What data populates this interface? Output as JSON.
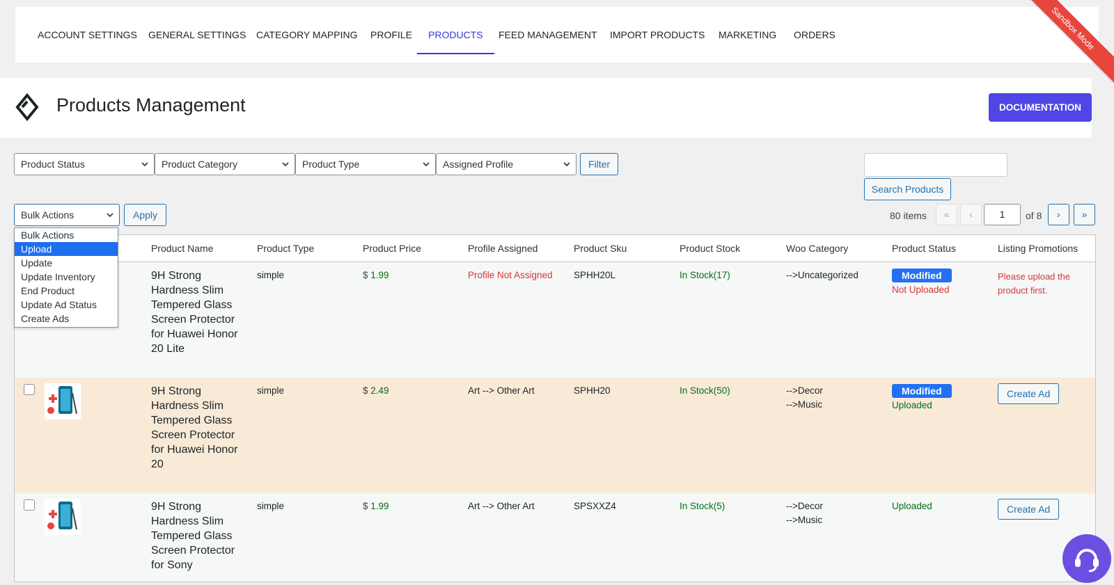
{
  "nav": {
    "tabs": [
      {
        "label": "ACCOUNT SETTINGS"
      },
      {
        "label": "GENERAL SETTINGS"
      },
      {
        "label": "CATEGORY MAPPING"
      },
      {
        "label": "PROFILE"
      },
      {
        "label": "PRODUCTS",
        "active": true
      },
      {
        "label": "FEED MANAGEMENT"
      },
      {
        "label": "IMPORT PRODUCTS"
      },
      {
        "label": "MARKETING"
      },
      {
        "label": "ORDERS"
      }
    ],
    "ribbon": "Sandbox Mode"
  },
  "header": {
    "title": "Products Management",
    "doc_button": "DOCUMENTATION",
    "accent": "#4f46e5"
  },
  "filters": {
    "status": "Product Status",
    "category": "Product Category",
    "type": "Product Type",
    "profile": "Assigned Profile",
    "filter_button": "Filter"
  },
  "search": {
    "value": "",
    "button": "Search Products"
  },
  "bulk": {
    "selected": "Bulk Actions",
    "apply": "Apply",
    "options": [
      "Bulk Actions",
      "Upload",
      "Update",
      "Update Inventory",
      "End Product",
      "Update Ad Status",
      "Create Ads"
    ],
    "highlighted": "Upload"
  },
  "pagination": {
    "items": "80 items",
    "first": "«",
    "prev": "‹",
    "current": "1",
    "of": "of 8",
    "next": "›",
    "last": "»"
  },
  "table": {
    "columns": [
      "Product Name",
      "Product Type",
      "Product Price",
      "Profile Assigned",
      "Product Sku",
      "Product Stock",
      "Woo Category",
      "Product Status",
      "Listing Promotions"
    ],
    "rows": [
      {
        "name": "9H Strong Hardness Slim Tempered Glass Screen Protector for Huawei Honor 20 Lite",
        "type": "simple",
        "currency": "$",
        "price": "1.99",
        "profile": "Profile Not Assigned",
        "sku": "SPHH20L",
        "stock": "In Stock(17)",
        "category": [
          "-->Uncategorized"
        ],
        "badge": "Modified",
        "status": "Not Uploaded",
        "promotion": "Please upload the product first."
      },
      {
        "name": "9H Strong Hardness Slim Tempered Glass Screen Protector for Huawei Honor 20",
        "type": "simple",
        "currency": "$",
        "price": "2.49",
        "profile": "Art --> Other Art",
        "sku": "SPHH20",
        "stock": "In Stock(50)",
        "category": [
          "-->Decor",
          "-->Music"
        ],
        "badge": "Modified",
        "status": "Uploaded",
        "promotion": "Create Ad"
      },
      {
        "name": "9H Strong Hardness Slim Tempered Glass Screen Protector for Sony",
        "type": "simple",
        "currency": "$",
        "price": "1.99",
        "profile": "Art --> Other Art",
        "sku": "SPSXXZ4",
        "stock": "In Stock(5)",
        "category": [
          "-->Decor",
          "-->Music"
        ],
        "status": "Uploaded",
        "promotion": "Create Ad"
      }
    ]
  }
}
